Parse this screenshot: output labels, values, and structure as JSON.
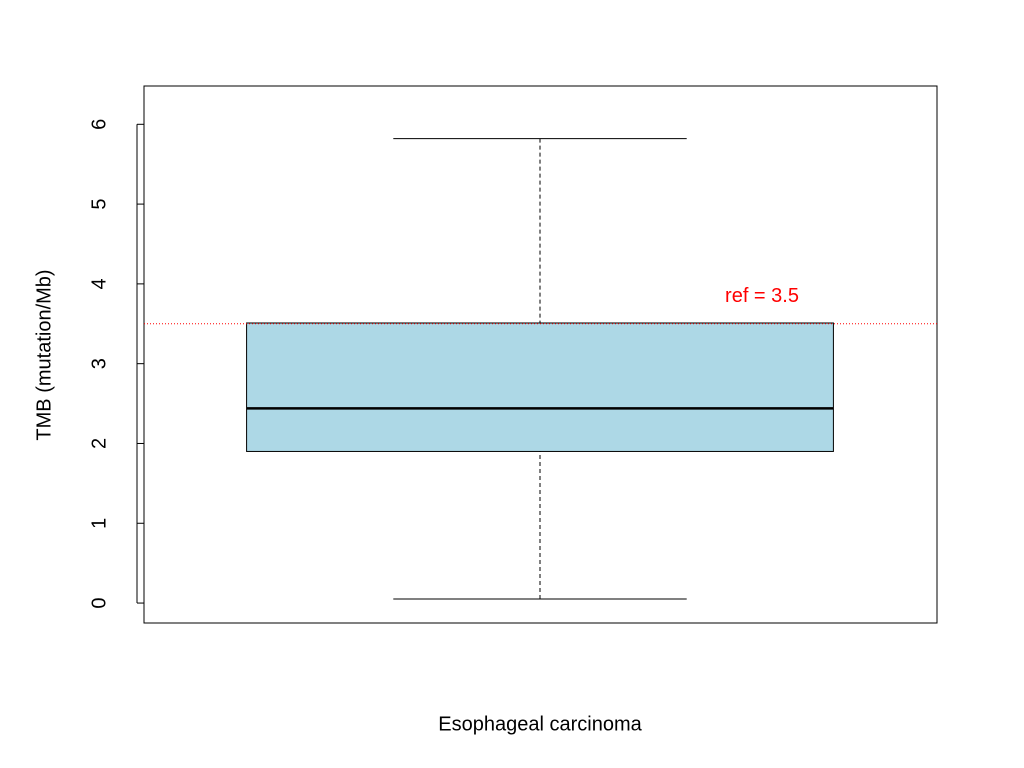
{
  "chart_data": {
    "type": "box",
    "y_label": "TMB (mutation/Mb)",
    "categories": [
      "Esophageal carcinoma"
    ],
    "boxes": [
      {
        "min": 0.05,
        "q1": 1.9,
        "median": 2.44,
        "q3": 3.51,
        "max": 5.82
      }
    ],
    "color": "#add8e6",
    "ylim": [
      -0.25,
      6.48
    ],
    "yticks": [
      0,
      1,
      2,
      3,
      4,
      5,
      6
    ],
    "ref_line": {
      "value": 3.5,
      "label": "ref = 3.5",
      "color": "#ff0000"
    }
  }
}
